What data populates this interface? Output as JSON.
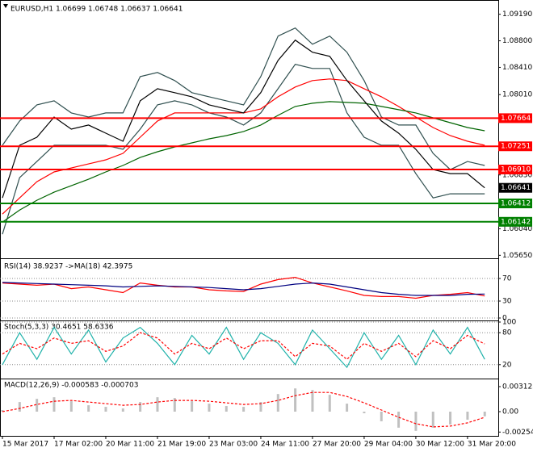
{
  "chart_data": [
    {
      "type": "line",
      "title": "EURUSD,H1  1.06699 1.06748 1.06637 1.06641",
      "ylim": [
        1.0563,
        1.0934
      ],
      "yticks": [
        {
          "value": 1.0919,
          "label": "1.09190"
        },
        {
          "value": 1.088,
          "label": "1.08800"
        },
        {
          "value": 1.0841,
          "label": "1.08410"
        },
        {
          "value": 1.0801,
          "label": "1.08010"
        },
        {
          "value": 1.0683,
          "label": "1.06830"
        },
        {
          "value": 1.0604,
          "label": "1.06040"
        },
        {
          "value": 1.0565,
          "label": "1.05650"
        }
      ],
      "levels": [
        {
          "value": 1.07664,
          "label": "1.07664",
          "color": "#ff0000"
        },
        {
          "value": 1.07251,
          "label": "1.07251",
          "color": "#ff0000"
        },
        {
          "value": 1.0691,
          "label": "1.06910",
          "color": "#ff0000"
        },
        {
          "value": 1.06412,
          "label": "1.06412",
          "color": "#008000"
        },
        {
          "value": 1.06142,
          "label": "1.06142",
          "color": "#008000"
        }
      ],
      "last": {
        "value": 1.06641,
        "label": "1.06641",
        "color": "#000000"
      },
      "series": [
        {
          "color": "#2f4f4f",
          "values": [
            1.07266,
            1.07622,
            1.0786,
            1.07919,
            1.07741,
            1.07681,
            1.07741,
            1.07741,
            1.08275,
            1.08335,
            1.08216,
            1.08038,
            1.07978,
            1.07919,
            1.0786,
            1.08275,
            1.08869,
            1.08988,
            1.0875,
            1.08869,
            1.08632,
            1.08216,
            1.07681,
            1.07563,
            1.07563,
            1.07147,
            1.06909,
            1.07028,
            1.06969
          ]
        },
        {
          "color": "#2f4f4f",
          "values": [
            1.05959,
            1.0679,
            1.07028,
            1.07266,
            1.07266,
            1.07266,
            1.07266,
            1.07206,
            1.07503,
            1.0786,
            1.07919,
            1.0786,
            1.07741,
            1.07681,
            1.07563,
            1.07741,
            1.08097,
            1.08454,
            1.08394,
            1.08394,
            1.07741,
            1.07384,
            1.07266,
            1.07266,
            1.0685,
            1.06493,
            1.06553,
            1.06553,
            1.06553
          ]
        },
        {
          "color": "#ff0000",
          "values": [
            1.06256,
            1.06493,
            1.06731,
            1.06874,
            1.06933,
            1.06992,
            1.07052,
            1.07147,
            1.07384,
            1.07622,
            1.07741,
            1.07741,
            1.07741,
            1.07741,
            1.07741,
            1.078,
            1.07978,
            1.08121,
            1.08216,
            1.0824,
            1.08216,
            1.08097,
            1.07978,
            1.07836,
            1.07681,
            1.07527,
            1.07408,
            1.07325,
            1.07266
          ]
        },
        {
          "color": "#006400",
          "values": [
            1.06137,
            1.06315,
            1.06458,
            1.06577,
            1.06672,
            1.06767,
            1.06874,
            1.06969,
            1.07087,
            1.07171,
            1.07242,
            1.07301,
            1.07361,
            1.07408,
            1.07468,
            1.07563,
            1.07705,
            1.07836,
            1.07883,
            1.07907,
            1.07895,
            1.07883,
            1.07836,
            1.07788,
            1.07741,
            1.07669,
            1.07598,
            1.07527,
            1.07479
          ]
        },
        {
          "color": "#000000",
          "values": [
            1.06493,
            1.07266,
            1.07384,
            1.07681,
            1.07503,
            1.07563,
            1.07444,
            1.07325,
            1.07919,
            1.08097,
            1.08038,
            1.07978,
            1.0786,
            1.078,
            1.07741,
            1.08038,
            1.08513,
            1.0881,
            1.08632,
            1.08572,
            1.08216,
            1.07919,
            1.07622,
            1.07444,
            1.07206,
            1.06909,
            1.0685,
            1.0685,
            1.06641
          ]
        }
      ]
    },
    {
      "type": "line",
      "title": "RSI(14) 38.9237 ->MA(18) 42.3975",
      "ylim": [
        0,
        100
      ],
      "yticks": [
        0,
        30,
        70
      ],
      "grid": true,
      "series": [
        {
          "color": "#ff0000",
          "values": [
            62,
            60,
            58,
            60,
            52,
            55,
            50,
            45,
            62,
            58,
            55,
            55,
            50,
            48,
            47,
            60,
            68,
            72,
            62,
            55,
            48,
            40,
            38,
            38,
            35,
            40,
            42,
            45,
            39
          ]
        },
        {
          "color": "#000080",
          "values": [
            63,
            62,
            61,
            60,
            59,
            58,
            57,
            55,
            56,
            57,
            56,
            55,
            54,
            52,
            50,
            52,
            56,
            60,
            62,
            60,
            55,
            50,
            45,
            42,
            40,
            40,
            40,
            42,
            42.4
          ]
        }
      ]
    },
    {
      "type": "line",
      "title": "Stoch(5,3,3) 30.4651 58.6336",
      "ylim": [
        0,
        100
      ],
      "yticks": [
        20,
        80,
        100
      ],
      "grid": true,
      "series": [
        {
          "color": "#20b2aa",
          "values": [
            20,
            80,
            30,
            90,
            40,
            85,
            25,
            70,
            90,
            60,
            20,
            75,
            40,
            90,
            30,
            80,
            60,
            20,
            85,
            50,
            15,
            80,
            30,
            75,
            20,
            85,
            40,
            90,
            30
          ]
        },
        {
          "color": "#ff0000",
          "dashed": true,
          "values": [
            40,
            60,
            50,
            70,
            60,
            65,
            45,
            55,
            80,
            70,
            40,
            60,
            50,
            70,
            50,
            65,
            65,
            35,
            60,
            55,
            30,
            60,
            45,
            60,
            35,
            65,
            50,
            75,
            59
          ]
        }
      ]
    },
    {
      "type": "bar",
      "title": "MACD(12,26,9) -0.000583 -0.000703",
      "ylim": [
        -0.00302,
        0.00393
      ],
      "yticks": [
        0.003123,
        {
          "value": 0,
          "label": "0.00"
        },
        -0.002546
      ],
      "categories": [
        "15 Mar 2017",
        null,
        null,
        "17 Mar 02:00",
        null,
        null,
        "20 Mar 11:00",
        null,
        null,
        "21 Mar 19:00",
        null,
        null,
        "23 Mar 03:00",
        null,
        null,
        "24 Mar 11:00",
        null,
        null,
        "27 Mar 20:00",
        null,
        null,
        "29 Mar 04:00",
        null,
        null,
        "30 Mar 12:00",
        null,
        null,
        "31 Mar 20:00",
        null
      ],
      "series": [
        {
          "type": "bar",
          "color": "#c0c0c0",
          "values": [
            0.0002,
            0.0012,
            0.0016,
            0.0018,
            0.0013,
            0.0008,
            0.0006,
            0.0004,
            0.0012,
            0.0018,
            0.0017,
            0.0013,
            0.001,
            0.0007,
            0.0006,
            0.0012,
            0.0022,
            0.0029,
            0.0027,
            0.0021,
            0.001,
            -0.0002,
            -0.0012,
            -0.002,
            -0.0024,
            -0.002,
            -0.0016,
            -0.001,
            -0.000583
          ]
        },
        {
          "type": "line",
          "color": "#ff0000",
          "dashed": true,
          "values": [
            0,
            0.0004,
            0.0009,
            0.0013,
            0.0014,
            0.0012,
            0.001,
            0.0008,
            0.0009,
            0.0012,
            0.0014,
            0.0014,
            0.0013,
            0.0011,
            0.0009,
            0.001,
            0.0014,
            0.002,
            0.0024,
            0.0024,
            0.0019,
            0.0011,
            0.0002,
            -0.0007,
            -0.0015,
            -0.0019,
            -0.0018,
            -0.0014,
            -0.000703
          ]
        }
      ]
    }
  ]
}
